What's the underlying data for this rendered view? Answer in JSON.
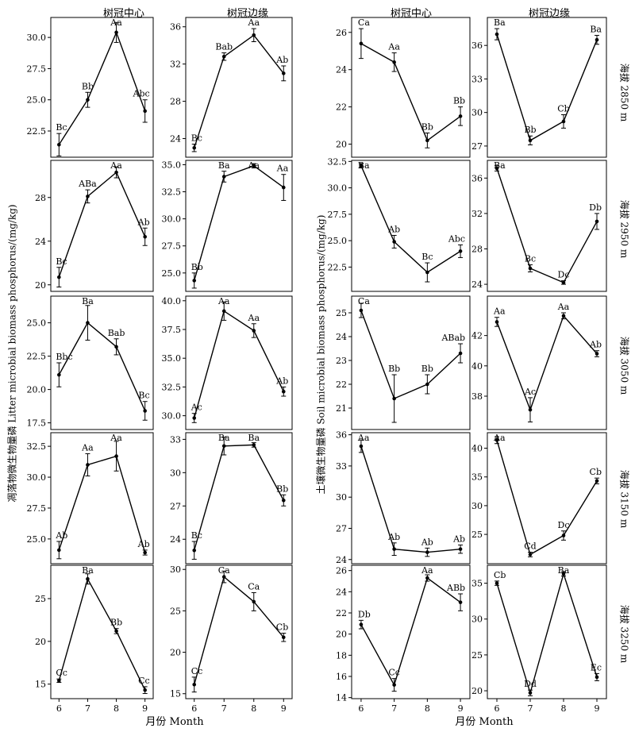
{
  "figure": {
    "col_titles": [
      "树冠中心",
      "树冠边缘",
      "树冠中心",
      "树冠边缘"
    ],
    "row_labels": [
      "海拔 2850 m",
      "海拔 2950 m",
      "海拔 3050 m",
      "海拔 3150 m",
      "海拔 3250 m"
    ],
    "xlabel": "月份 Month",
    "ylabel_left": "凋落物微生物量磷 Litter microbial biomass phosphorus/(mg/kg)",
    "ylabel_right": "土壤微生物量磷 Soil microbial biomass phosphorus/(mg/kg)"
  },
  "chart_data": [
    {
      "type": "line",
      "row": 0,
      "col": 0,
      "x": [
        6,
        7,
        8,
        9
      ],
      "values": [
        21.4,
        25.0,
        30.4,
        24.1
      ],
      "errors": [
        0.9,
        0.6,
        0.8,
        0.9
      ],
      "labels": [
        "Bc",
        "Bb",
        "Aa",
        "Abc"
      ],
      "ylim": [
        20.4,
        31.6
      ],
      "yticks": [
        22.5,
        25.0,
        27.5,
        30.0
      ],
      "yticklabels": [
        "22.5",
        "25.0",
        "27.5",
        "30.0"
      ]
    },
    {
      "type": "line",
      "row": 0,
      "col": 1,
      "x": [
        6,
        7,
        8,
        9
      ],
      "values": [
        23.0,
        32.8,
        35.1,
        31.0
      ],
      "errors": [
        0.4,
        0.4,
        0.7,
        0.8
      ],
      "labels": [
        "Bc",
        "Bab",
        "Aa",
        "Ab"
      ],
      "ylim": [
        22.0,
        37.0
      ],
      "yticks": [
        24,
        28,
        32,
        36
      ],
      "yticklabels": [
        "24",
        "28",
        "32",
        "36"
      ]
    },
    {
      "type": "line",
      "row": 0,
      "col": 2,
      "x": [
        6,
        7,
        8,
        9
      ],
      "values": [
        25.4,
        24.4,
        20.2,
        21.5
      ],
      "errors": [
        0.8,
        0.5,
        0.4,
        0.5
      ],
      "labels": [
        "Ca",
        "Aa",
        "Bb",
        "Bb"
      ],
      "ylim": [
        19.3,
        26.8
      ],
      "yticks": [
        20,
        22,
        24,
        26
      ],
      "yticklabels": [
        "20",
        "22",
        "24",
        "26"
      ]
    },
    {
      "type": "line",
      "row": 0,
      "col": 3,
      "x": [
        6,
        7,
        8,
        9
      ],
      "values": [
        37.0,
        27.5,
        29.2,
        36.5
      ],
      "errors": [
        0.5,
        0.4,
        0.6,
        0.4
      ],
      "labels": [
        "Ba",
        "Bb",
        "Cb",
        "Ba"
      ],
      "ylim": [
        26.0,
        38.5
      ],
      "yticks": [
        27,
        30,
        33,
        36
      ],
      "yticklabels": [
        "27",
        "30",
        "33",
        "36"
      ]
    },
    {
      "type": "line",
      "row": 1,
      "col": 0,
      "x": [
        6,
        7,
        8,
        9
      ],
      "values": [
        20.7,
        28.1,
        30.3,
        24.4
      ],
      "errors": [
        0.9,
        0.6,
        0.5,
        0.8
      ],
      "labels": [
        "Bc",
        "ABa",
        "Aa",
        "Ab"
      ],
      "ylim": [
        19.4,
        31.4
      ],
      "yticks": [
        20,
        24,
        28
      ],
      "yticklabels": [
        "20",
        "24",
        "28"
      ]
    },
    {
      "type": "line",
      "row": 1,
      "col": 1,
      "x": [
        6,
        7,
        8,
        9
      ],
      "values": [
        24.3,
        33.9,
        34.9,
        32.9
      ],
      "errors": [
        0.7,
        0.5,
        0.2,
        1.2
      ],
      "labels": [
        "Bb",
        "Ba",
        "Aa",
        "Aa"
      ],
      "ylim": [
        23.3,
        35.4
      ],
      "yticks": [
        25.0,
        27.5,
        30.0,
        32.5,
        35.0
      ],
      "yticklabels": [
        "25.0",
        "27.5",
        "30.0",
        "32.5",
        "35.0"
      ]
    },
    {
      "type": "line",
      "row": 1,
      "col": 2,
      "x": [
        6,
        7,
        8,
        9
      ],
      "values": [
        32.1,
        24.9,
        22.0,
        24.0
      ],
      "errors": [
        0.2,
        0.6,
        0.9,
        0.6
      ],
      "labels": [
        "Ba",
        "Ab",
        "Bc",
        "Abc"
      ],
      "ylim": [
        20.2,
        32.6
      ],
      "yticks": [
        22.5,
        25.0,
        27.5,
        30.0,
        32.5
      ],
      "yticklabels": [
        "22.5",
        "25.0",
        "27.5",
        "30.0",
        "32.5"
      ]
    },
    {
      "type": "line",
      "row": 1,
      "col": 3,
      "x": [
        6,
        7,
        8,
        9
      ],
      "values": [
        37.1,
        25.8,
        24.2,
        31.1
      ],
      "errors": [
        0.3,
        0.4,
        0.2,
        0.9
      ],
      "labels": [
        "Ba",
        "Bc",
        "Dc",
        "Db"
      ],
      "ylim": [
        23.2,
        38.0
      ],
      "yticks": [
        24,
        28,
        32,
        36
      ],
      "yticklabels": [
        "24",
        "28",
        "32",
        "36"
      ]
    },
    {
      "type": "line",
      "row": 2,
      "col": 0,
      "x": [
        6,
        7,
        8,
        9
      ],
      "values": [
        21.1,
        25.0,
        23.2,
        18.4
      ],
      "errors": [
        0.9,
        1.3,
        0.6,
        0.7
      ],
      "labels": [
        "Bbc",
        "Ba",
        "Bab",
        "Bc"
      ],
      "ylim": [
        17.0,
        27.0
      ],
      "yticks": [
        17.5,
        20.0,
        22.5,
        25.0
      ],
      "yticklabels": [
        "17.5",
        "20.0",
        "22.5",
        "25.0"
      ]
    },
    {
      "type": "line",
      "row": 2,
      "col": 1,
      "x": [
        6,
        7,
        8,
        9
      ],
      "values": [
        29.8,
        39.1,
        37.4,
        32.1
      ],
      "errors": [
        0.4,
        0.8,
        0.6,
        0.4
      ],
      "labels": [
        "Ac",
        "Aa",
        "Aa",
        "Ab"
      ],
      "ylim": [
        28.8,
        40.4
      ],
      "yticks": [
        30.0,
        32.5,
        35.0,
        37.5,
        40.0
      ],
      "yticklabels": [
        "30.0",
        "32.5",
        "35.0",
        "37.5",
        "40.0"
      ]
    },
    {
      "type": "line",
      "row": 2,
      "col": 2,
      "x": [
        6,
        7,
        8,
        9
      ],
      "values": [
        25.1,
        21.4,
        22.0,
        23.3
      ],
      "errors": [
        0.3,
        1.0,
        0.4,
        0.4
      ],
      "labels": [
        "Ca",
        "Bb",
        "Bb",
        "ABab"
      ],
      "ylim": [
        20.1,
        25.7
      ],
      "yticks": [
        21,
        22,
        23,
        24,
        25
      ],
      "yticklabels": [
        "21",
        "22",
        "23",
        "24",
        "25"
      ]
    },
    {
      "type": "line",
      "row": 2,
      "col": 3,
      "x": [
        6,
        7,
        8,
        9
      ],
      "values": [
        42.9,
        37.1,
        43.3,
        40.8
      ],
      "errors": [
        0.3,
        0.8,
        0.2,
        0.2
      ],
      "labels": [
        "Aa",
        "Ac",
        "Aa",
        "Ab"
      ],
      "ylim": [
        35.8,
        44.6
      ],
      "yticks": [
        38,
        40,
        42
      ],
      "yticklabels": [
        "38",
        "40",
        "42"
      ]
    },
    {
      "type": "line",
      "row": 3,
      "col": 0,
      "x": [
        6,
        7,
        8,
        9
      ],
      "values": [
        24.1,
        31.0,
        31.7,
        23.9
      ],
      "errors": [
        0.7,
        0.9,
        1.2,
        0.2
      ],
      "labels": [
        "Ab",
        "Aa",
        "Aa",
        "Ab"
      ],
      "ylim": [
        23.0,
        33.6
      ],
      "yticks": [
        25.0,
        27.5,
        30.0,
        32.5
      ],
      "yticklabels": [
        "25.0",
        "27.5",
        "30.0",
        "32.5"
      ]
    },
    {
      "type": "line",
      "row": 3,
      "col": 1,
      "x": [
        6,
        7,
        8,
        9
      ],
      "values": [
        23.0,
        32.4,
        32.5,
        27.5
      ],
      "errors": [
        0.8,
        0.8,
        0.2,
        0.5
      ],
      "labels": [
        "Bc",
        "Ba",
        "Ba",
        "Bb"
      ],
      "ylim": [
        21.8,
        33.6
      ],
      "yticks": [
        24,
        27,
        30,
        33
      ],
      "yticklabels": [
        "24",
        "27",
        "30",
        "33"
      ]
    },
    {
      "type": "line",
      "row": 3,
      "col": 2,
      "x": [
        6,
        7,
        8,
        9
      ],
      "values": [
        34.9,
        25.0,
        24.7,
        25.0
      ],
      "errors": [
        0.6,
        0.6,
        0.4,
        0.4
      ],
      "labels": [
        "Aa",
        "Ab",
        "Ab",
        "Ab"
      ],
      "ylim": [
        23.6,
        36.2
      ],
      "yticks": [
        24,
        27,
        30,
        33,
        36
      ],
      "yticklabels": [
        "24",
        "27",
        "30",
        "33",
        "36"
      ]
    },
    {
      "type": "line",
      "row": 3,
      "col": 3,
      "x": [
        6,
        7,
        8,
        9
      ],
      "values": [
        41.4,
        21.5,
        24.8,
        34.3
      ],
      "errors": [
        0.6,
        0.4,
        0.8,
        0.5
      ],
      "labels": [
        "Aa",
        "Cd",
        "Dc",
        "Cb"
      ],
      "ylim": [
        19.9,
        42.7
      ],
      "yticks": [
        25,
        30,
        35,
        40
      ],
      "yticklabels": [
        "25",
        "30",
        "35",
        "40"
      ]
    },
    {
      "type": "line",
      "row": 4,
      "col": 0,
      "x": [
        6,
        7,
        8,
        9
      ],
      "values": [
        15.4,
        27.3,
        21.2,
        14.3
      ],
      "errors": [
        0.2,
        0.6,
        0.3,
        0.4
      ],
      "labels": [
        "Cc",
        "Ba",
        "Bb",
        "Cc"
      ],
      "ylim": [
        13.3,
        28.9
      ],
      "yticks": [
        15,
        20,
        25
      ],
      "yticklabels": [
        "15",
        "20",
        "25"
      ]
    },
    {
      "type": "line",
      "row": 4,
      "col": 1,
      "x": [
        6,
        7,
        8,
        9
      ],
      "values": [
        16.1,
        29.1,
        26.1,
        21.8
      ],
      "errors": [
        0.9,
        0.7,
        1.1,
        0.5
      ],
      "labels": [
        "Cc",
        "Ca",
        "Ca",
        "Cb"
      ],
      "ylim": [
        14.4,
        30.5
      ],
      "yticks": [
        15,
        20,
        25,
        30
      ],
      "yticklabels": [
        "15",
        "20",
        "25",
        "30"
      ]
    },
    {
      "type": "line",
      "row": 4,
      "col": 2,
      "x": [
        6,
        7,
        8,
        9
      ],
      "values": [
        20.9,
        15.2,
        25.3,
        23.0
      ],
      "errors": [
        0.4,
        0.6,
        0.3,
        0.8
      ],
      "labels": [
        "Db",
        "Cc",
        "Aa",
        "ABb"
      ],
      "ylim": [
        13.9,
        26.5
      ],
      "yticks": [
        14,
        16,
        18,
        20,
        22,
        24,
        26
      ],
      "yticklabels": [
        "14",
        "16",
        "18",
        "20",
        "22",
        "24",
        "26"
      ]
    },
    {
      "type": "line",
      "row": 4,
      "col": 3,
      "x": [
        6,
        7,
        8,
        9
      ],
      "values": [
        35.0,
        19.7,
        36.3,
        21.9
      ],
      "errors": [
        0.3,
        0.4,
        0.3,
        0.5
      ],
      "labels": [
        "Cb",
        "Dd",
        "Ba",
        "Ec"
      ],
      "ylim": [
        18.9,
        37.5
      ],
      "yticks": [
        20,
        25,
        30,
        35
      ],
      "yticklabels": [
        "20",
        "25",
        "30",
        "35"
      ]
    }
  ]
}
